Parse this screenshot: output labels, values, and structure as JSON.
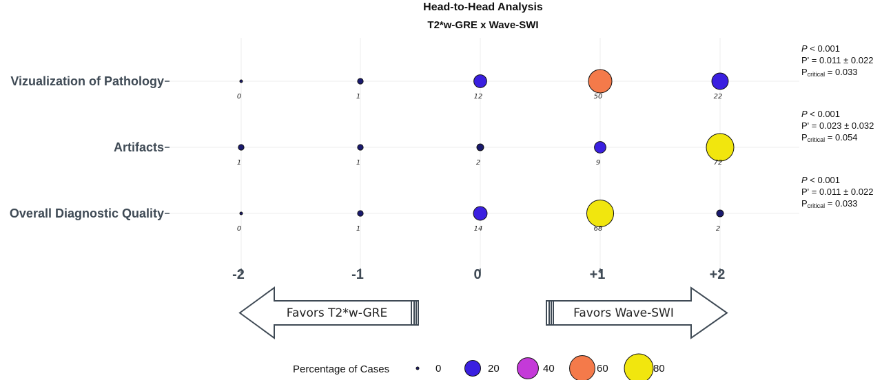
{
  "chart_data": {
    "type": "scatter",
    "title": "Head-to-Head Analysis",
    "subtitle": "T2*w-GRE x Wave-SWI",
    "x_categories": [
      "-2",
      "-1",
      "0",
      "+1",
      "+2"
    ],
    "rows": [
      {
        "label": "Vizualization of Pathology",
        "values": [
          0,
          1,
          12,
          50,
          22
        ],
        "stats": {
          "p": "< 0.001",
          "p_prime": "= 0.011 ± 0.022",
          "p_critical": "= 0.033"
        }
      },
      {
        "label": "Artifacts",
        "values": [
          1,
          1,
          2,
          9,
          72
        ],
        "stats": {
          "p": "< 0.001",
          "p_prime": "= 0.023 ± 0.032",
          "p_critical": "= 0.054"
        }
      },
      {
        "label": "Overall Diagnostic Quality",
        "values": [
          0,
          1,
          14,
          68,
          2
        ],
        "stats": {
          "p": "< 0.001",
          "p_prime": "= 0.011 ± 0.022",
          "p_critical": "= 0.033"
        }
      }
    ],
    "stat_symbols": {
      "p": "P",
      "p_prime": "P'",
      "p_critical_base": "P",
      "p_critical_sub": "critical"
    },
    "arrows": {
      "left": "Favors T2*w-GRE",
      "right": "Favors Wave-SWI"
    },
    "legend": {
      "title": "Percentage of Cases",
      "values": [
        0,
        20,
        40,
        60,
        80
      ]
    },
    "color_scale": [
      "#1a1a6e",
      "#3a1fe0",
      "#c43ad8",
      "#f47a4a",
      "#f1e60e"
    ],
    "grid": true
  }
}
